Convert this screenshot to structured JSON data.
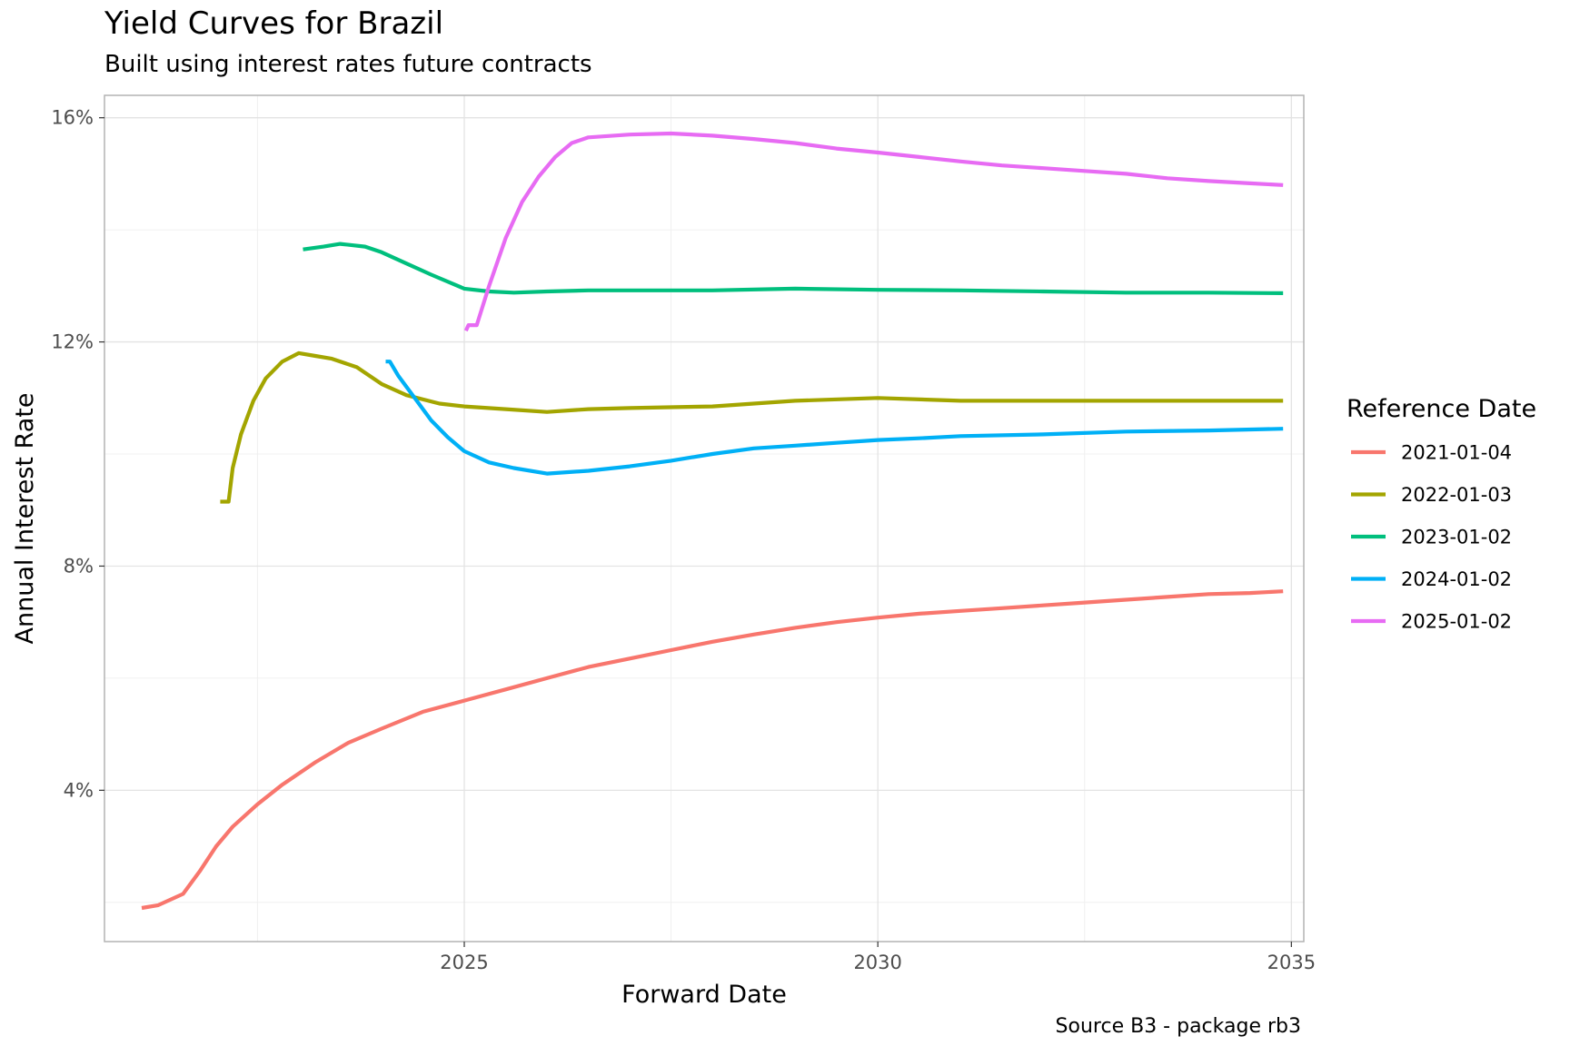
{
  "chart_data": {
    "type": "line",
    "title": "Yield Curves for Brazil",
    "subtitle": "Built using interest rates future contracts",
    "caption": "Source B3 - package rb3",
    "xlabel": "Forward Date",
    "ylabel": "Annual Interest Rate",
    "xlim": [
      2020.65,
      2035.15
    ],
    "ylim": [
      1.3,
      16.4
    ],
    "x_ticks": [
      2025,
      2030,
      2035
    ],
    "x_tick_labels": [
      "2025",
      "2030",
      "2035"
    ],
    "y_ticks": [
      4,
      8,
      12,
      16
    ],
    "y_tick_labels": [
      "4%",
      "8%",
      "12%",
      "16%"
    ],
    "grid": true,
    "legend_title": "Reference Date",
    "legend_position": "right",
    "series": [
      {
        "name": "2021-01-04",
        "color": "#F8766D",
        "points": [
          [
            2021.1,
            1.9
          ],
          [
            2021.3,
            1.95
          ],
          [
            2021.6,
            2.15
          ],
          [
            2021.8,
            2.55
          ],
          [
            2022.0,
            3.0
          ],
          [
            2022.2,
            3.35
          ],
          [
            2022.5,
            3.75
          ],
          [
            2022.8,
            4.1
          ],
          [
            2023.2,
            4.5
          ],
          [
            2023.6,
            4.85
          ],
          [
            2024.0,
            5.1
          ],
          [
            2024.5,
            5.4
          ],
          [
            2025.0,
            5.6
          ],
          [
            2025.5,
            5.8
          ],
          [
            2026.0,
            6.0
          ],
          [
            2026.5,
            6.2
          ],
          [
            2027.0,
            6.35
          ],
          [
            2027.5,
            6.5
          ],
          [
            2028.0,
            6.65
          ],
          [
            2028.5,
            6.78
          ],
          [
            2029.0,
            6.9
          ],
          [
            2029.5,
            7.0
          ],
          [
            2030.0,
            7.08
          ],
          [
            2030.5,
            7.15
          ],
          [
            2031.0,
            7.2
          ],
          [
            2031.5,
            7.25
          ],
          [
            2032.0,
            7.3
          ],
          [
            2032.5,
            7.35
          ],
          [
            2033.0,
            7.4
          ],
          [
            2033.5,
            7.45
          ],
          [
            2034.0,
            7.5
          ],
          [
            2034.5,
            7.52
          ],
          [
            2034.9,
            7.55
          ]
        ]
      },
      {
        "name": "2022-01-03",
        "color": "#A3A500",
        "points": [
          [
            2022.05,
            9.15
          ],
          [
            2022.15,
            9.15
          ],
          [
            2022.2,
            9.75
          ],
          [
            2022.3,
            10.35
          ],
          [
            2022.45,
            10.95
          ],
          [
            2022.6,
            11.35
          ],
          [
            2022.8,
            11.65
          ],
          [
            2023.0,
            11.8
          ],
          [
            2023.2,
            11.75
          ],
          [
            2023.4,
            11.7
          ],
          [
            2023.7,
            11.55
          ],
          [
            2024.0,
            11.25
          ],
          [
            2024.3,
            11.05
          ],
          [
            2024.7,
            10.9
          ],
          [
            2025.0,
            10.85
          ],
          [
            2025.5,
            10.8
          ],
          [
            2026.0,
            10.75
          ],
          [
            2026.5,
            10.8
          ],
          [
            2027.0,
            10.82
          ],
          [
            2028.0,
            10.85
          ],
          [
            2029.0,
            10.95
          ],
          [
            2030.0,
            11.0
          ],
          [
            2031.0,
            10.95
          ],
          [
            2032.0,
            10.95
          ],
          [
            2033.0,
            10.95
          ],
          [
            2034.0,
            10.95
          ],
          [
            2034.9,
            10.95
          ]
        ]
      },
      {
        "name": "2023-01-02",
        "color": "#00BF7D",
        "points": [
          [
            2023.05,
            13.65
          ],
          [
            2023.3,
            13.7
          ],
          [
            2023.5,
            13.75
          ],
          [
            2023.8,
            13.7
          ],
          [
            2024.0,
            13.6
          ],
          [
            2024.3,
            13.4
          ],
          [
            2024.6,
            13.2
          ],
          [
            2025.0,
            12.95
          ],
          [
            2025.3,
            12.9
          ],
          [
            2025.6,
            12.88
          ],
          [
            2026.0,
            12.9
          ],
          [
            2026.5,
            12.92
          ],
          [
            2027.0,
            12.92
          ],
          [
            2028.0,
            12.92
          ],
          [
            2029.0,
            12.95
          ],
          [
            2030.0,
            12.93
          ],
          [
            2031.0,
            12.92
          ],
          [
            2032.0,
            12.9
          ],
          [
            2033.0,
            12.88
          ],
          [
            2034.0,
            12.88
          ],
          [
            2034.9,
            12.87
          ]
        ]
      },
      {
        "name": "2024-01-02",
        "color": "#00B0F6",
        "points": [
          [
            2024.05,
            11.65
          ],
          [
            2024.1,
            11.65
          ],
          [
            2024.2,
            11.4
          ],
          [
            2024.4,
            11.0
          ],
          [
            2024.6,
            10.6
          ],
          [
            2024.8,
            10.3
          ],
          [
            2025.0,
            10.05
          ],
          [
            2025.3,
            9.85
          ],
          [
            2025.6,
            9.75
          ],
          [
            2026.0,
            9.65
          ],
          [
            2026.5,
            9.7
          ],
          [
            2027.0,
            9.78
          ],
          [
            2027.5,
            9.88
          ],
          [
            2028.0,
            10.0
          ],
          [
            2028.5,
            10.1
          ],
          [
            2029.0,
            10.15
          ],
          [
            2029.5,
            10.2
          ],
          [
            2030.0,
            10.25
          ],
          [
            2030.5,
            10.28
          ],
          [
            2031.0,
            10.32
          ],
          [
            2032.0,
            10.35
          ],
          [
            2033.0,
            10.4
          ],
          [
            2034.0,
            10.42
          ],
          [
            2034.9,
            10.45
          ]
        ]
      },
      {
        "name": "2025-01-02",
        "color": "#E76BF3",
        "points": [
          [
            2025.02,
            12.2
          ],
          [
            2025.05,
            12.3
          ],
          [
            2025.15,
            12.3
          ],
          [
            2025.3,
            13.0
          ],
          [
            2025.5,
            13.85
          ],
          [
            2025.7,
            14.5
          ],
          [
            2025.9,
            14.95
          ],
          [
            2026.1,
            15.3
          ],
          [
            2026.3,
            15.55
          ],
          [
            2026.5,
            15.65
          ],
          [
            2027.0,
            15.7
          ],
          [
            2027.5,
            15.72
          ],
          [
            2028.0,
            15.68
          ],
          [
            2028.5,
            15.62
          ],
          [
            2029.0,
            15.55
          ],
          [
            2029.5,
            15.45
          ],
          [
            2030.0,
            15.38
          ],
          [
            2030.5,
            15.3
          ],
          [
            2031.0,
            15.22
          ],
          [
            2031.5,
            15.15
          ],
          [
            2032.0,
            15.1
          ],
          [
            2032.5,
            15.05
          ],
          [
            2033.0,
            15.0
          ],
          [
            2033.5,
            14.92
          ],
          [
            2034.0,
            14.87
          ],
          [
            2034.5,
            14.83
          ],
          [
            2034.9,
            14.8
          ]
        ]
      }
    ]
  }
}
